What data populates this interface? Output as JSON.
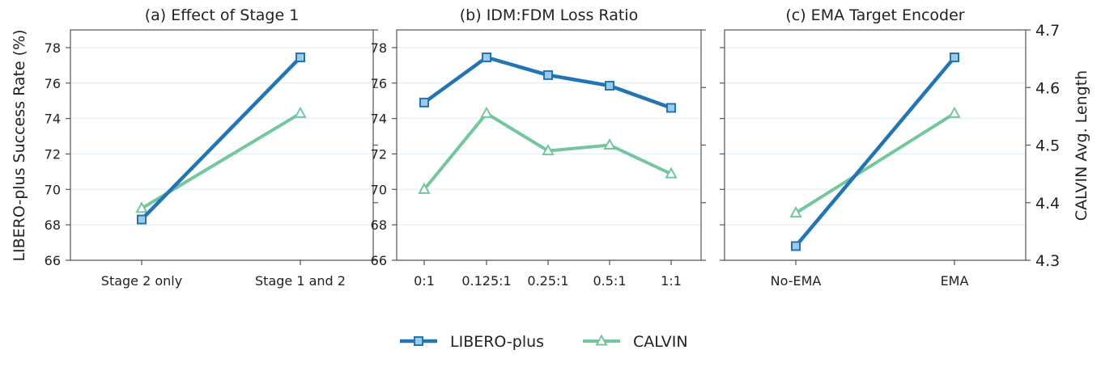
{
  "chart_data": [
    {
      "type": "line",
      "title": "(a) Effect of Stage 1",
      "categories": [
        "Stage 2 only",
        "Stage 1 and 2"
      ],
      "ylabel": "LIBERO-plus Success Rate (%)",
      "ylim": [
        66,
        79
      ],
      "yticks": [
        66,
        68,
        70,
        72,
        74,
        76,
        78
      ],
      "y2lim": [
        4.3,
        4.7
      ],
      "series": [
        {
          "name": "LIBERO-plus",
          "axis": "left",
          "values": [
            68.3,
            77.45
          ]
        },
        {
          "name": "CALVIN",
          "axis": "right",
          "values": [
            4.39,
            4.555
          ]
        }
      ]
    },
    {
      "type": "line",
      "title": "(b) IDM:FDM Loss Ratio",
      "categories": [
        "0:1",
        "0.125:1",
        "0.25:1",
        "0.5:1",
        "1:1"
      ],
      "ylim": [
        66,
        79
      ],
      "yticks": [
        66,
        68,
        70,
        72,
        74,
        76,
        78
      ],
      "y2lim": [
        4.3,
        4.7
      ],
      "series": [
        {
          "name": "LIBERO-plus",
          "axis": "left",
          "values": [
            74.9,
            77.45,
            76.45,
            75.85,
            74.6
          ]
        },
        {
          "name": "CALVIN",
          "axis": "right",
          "values": [
            4.423,
            4.555,
            4.49,
            4.5,
            4.45
          ]
        }
      ]
    },
    {
      "type": "line",
      "title": "(c) EMA Target Encoder",
      "categories": [
        "No-EMA",
        "EMA"
      ],
      "ylim": [
        66,
        79
      ],
      "y2lim": [
        4.3,
        4.7
      ],
      "y2label": "CALVIN Avg. Length",
      "y2ticks": [
        4.3,
        4.4,
        4.5,
        4.6,
        4.7
      ],
      "series": [
        {
          "name": "LIBERO-plus",
          "axis": "left",
          "values": [
            66.8,
            77.45
          ]
        },
        {
          "name": "CALVIN",
          "axis": "right",
          "values": [
            4.382,
            4.555
          ]
        }
      ]
    }
  ],
  "legend": {
    "placement": "bottom-center",
    "entries": [
      "LIBERO-plus",
      "CALVIN"
    ]
  },
  "colors": {
    "libero": "#2374b3",
    "libero_marker": "#9ecae9",
    "calvin": "#74c69d",
    "grid": "#e4f1fb",
    "axis": "#555555"
  }
}
